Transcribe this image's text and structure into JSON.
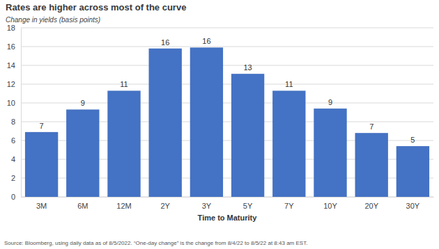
{
  "chart_data": {
    "type": "bar",
    "title": "Rates are higher across most of the curve",
    "subtitle": "Change in yields (basis points)",
    "x_label": "Time to Maturity",
    "source": "Source: Bloomberg, using daily data as of 8/5/2022. “One-day change” is the change from 8/4/22 to 8/5/22 at 8:43 am EST.",
    "categories": [
      "3M",
      "6M",
      "12M",
      "2Y",
      "3Y",
      "5Y",
      "7Y",
      "10Y",
      "20Y",
      "30Y"
    ],
    "values": [
      6.9,
      9.3,
      11.3,
      15.8,
      15.9,
      13.1,
      11.3,
      9.4,
      6.8,
      5.4
    ],
    "value_labels": [
      "7",
      "9",
      "11",
      "16",
      "16",
      "13",
      "11",
      "9",
      "7",
      "5"
    ],
    "color": "#4472c4",
    "ylim": [
      0,
      18
    ],
    "yticks": [
      0,
      2,
      4,
      6,
      8,
      10,
      12,
      14,
      16,
      18
    ],
    "grid": true,
    "data_labels": true
  }
}
